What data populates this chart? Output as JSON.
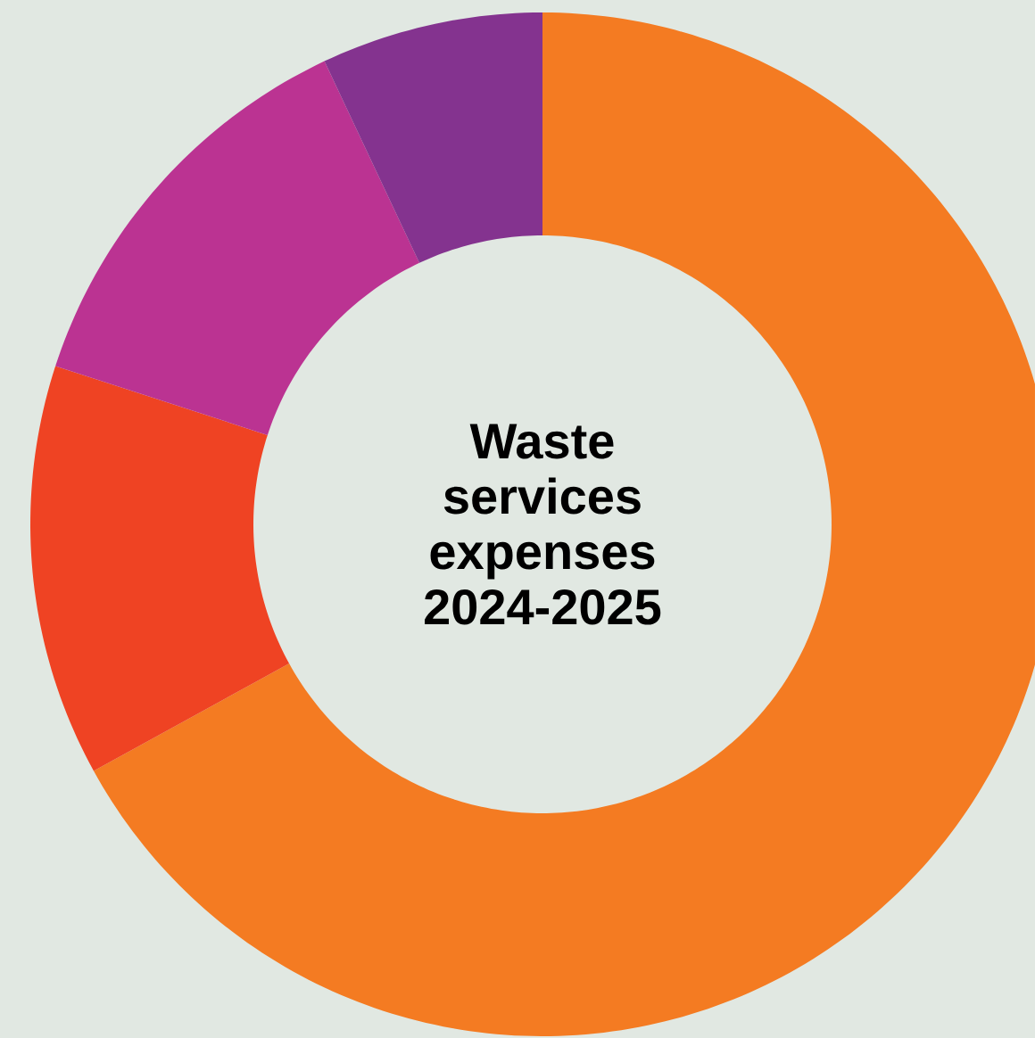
{
  "chart_data": {
    "type": "donut",
    "title": "Waste services expenses 2024-2025",
    "categories": [
      null,
      null,
      null,
      null
    ],
    "values": [
      67,
      13,
      13,
      7
    ],
    "colors": [
      "#f47b22",
      "#ef4323",
      "#bb3392",
      "#84338f"
    ]
  }
}
